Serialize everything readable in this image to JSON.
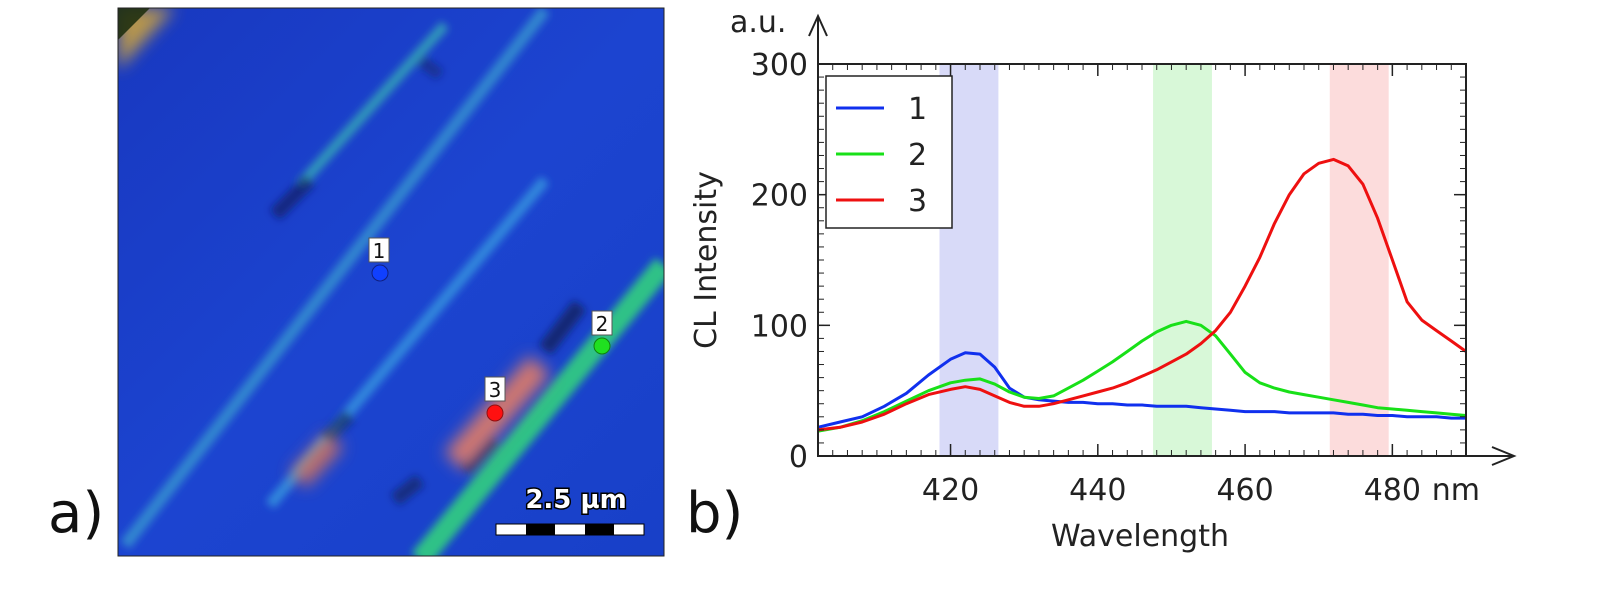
{
  "panel_a": {
    "label": "a)",
    "scale_bar_text": "2.5 µm",
    "markers": [
      {
        "label": "1",
        "color": "#1040ff"
      },
      {
        "label": "2",
        "color": "#20e020"
      },
      {
        "label": "3",
        "color": "#ff1010"
      }
    ]
  },
  "panel_b": {
    "label": "b)",
    "y_unit_label": "a.u.",
    "x_unit_label": "nm"
  },
  "chart_data": {
    "type": "line",
    "xlabel": "Wavelength",
    "ylabel": "CL Intensity",
    "xlim": [
      402,
      490
    ],
    "ylim": [
      0,
      300
    ],
    "x_ticks": [
      420,
      440,
      460,
      480
    ],
    "y_ticks": [
      0,
      100,
      200,
      300
    ],
    "legend_position": "top-left",
    "highlight_bands": [
      {
        "from": 418.5,
        "to": 426.5,
        "color": "#d8daf8"
      },
      {
        "from": 447.5,
        "to": 455.5,
        "color": "#d8f8d8"
      },
      {
        "from": 471.5,
        "to": 479.5,
        "color": "#fcdcdc"
      }
    ],
    "x": [
      402,
      405,
      408,
      411,
      414,
      417,
      420,
      422,
      424,
      426,
      428,
      430,
      432,
      434,
      436,
      438,
      440,
      442,
      444,
      446,
      448,
      450,
      452,
      454,
      456,
      458,
      460,
      462,
      464,
      466,
      468,
      470,
      472,
      474,
      476,
      478,
      480,
      482,
      484,
      486,
      488,
      490
    ],
    "series": [
      {
        "name": "1",
        "color": "#1030ee",
        "values": [
          22,
          26,
          30,
          38,
          48,
          62,
          74,
          79,
          78,
          68,
          52,
          45,
          43,
          42,
          41,
          41,
          40,
          40,
          39,
          39,
          38,
          38,
          38,
          37,
          36,
          35,
          34,
          34,
          34,
          33,
          33,
          33,
          33,
          32,
          32,
          31,
          31,
          30,
          30,
          30,
          29,
          29
        ]
      },
      {
        "name": "2",
        "color": "#18e018",
        "values": [
          19,
          22,
          27,
          34,
          42,
          50,
          56,
          58,
          59,
          55,
          49,
          45,
          44,
          46,
          52,
          58,
          65,
          72,
          80,
          88,
          95,
          100,
          103,
          100,
          92,
          78,
          64,
          56,
          52,
          49,
          47,
          45,
          43,
          41,
          39,
          37,
          36,
          35,
          34,
          33,
          32,
          31
        ]
      },
      {
        "name": "3",
        "color": "#ee1010",
        "values": [
          20,
          22,
          26,
          32,
          40,
          47,
          51,
          53,
          51,
          46,
          41,
          38,
          38,
          40,
          43,
          46,
          49,
          52,
          56,
          61,
          66,
          72,
          78,
          86,
          96,
          110,
          130,
          152,
          178,
          200,
          216,
          224,
          227,
          222,
          208,
          182,
          150,
          118,
          104,
          96,
          88,
          80
        ]
      }
    ]
  }
}
